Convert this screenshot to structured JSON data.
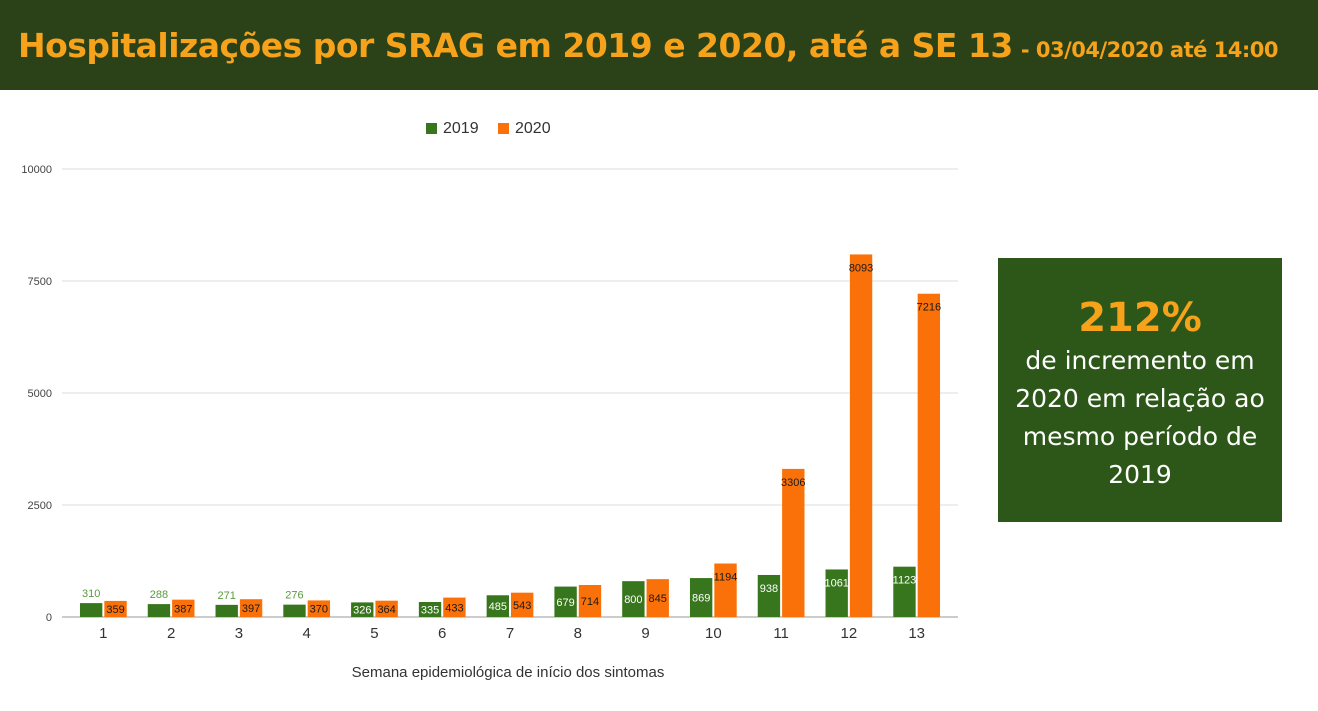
{
  "header": {
    "title": "Hospitalizações por SRAG em 2019 e 2020, até a SE 13",
    "subtitle": "- 03/04/2020 até 14:00"
  },
  "callout": {
    "percent": "212%",
    "text": "de incremento em 2020 em relação ao mesmo período de 2019"
  },
  "chart_data": {
    "type": "bar",
    "title": "Hospitalizações por SRAG em 2019 e 2020, até a SE 13",
    "xlabel": "Semana epidemiológica de início dos sintomas",
    "ylabel": "",
    "ylim": [
      0,
      10000
    ],
    "yticks": [
      0,
      2500,
      5000,
      7500,
      10000
    ],
    "grid": true,
    "legend_position": "top",
    "categories": [
      "1",
      "2",
      "3",
      "4",
      "5",
      "6",
      "7",
      "8",
      "9",
      "10",
      "11",
      "12",
      "13"
    ],
    "series": [
      {
        "name": "2019",
        "color": "#38761d",
        "values": [
          310,
          288,
          271,
          276,
          326,
          335,
          485,
          679,
          800,
          869,
          938,
          1061,
          1123
        ]
      },
      {
        "name": "2020",
        "color": "#f97108",
        "values": [
          359,
          387,
          397,
          370,
          364,
          433,
          543,
          714,
          845,
          1194,
          3306,
          8093,
          7216
        ]
      }
    ]
  }
}
